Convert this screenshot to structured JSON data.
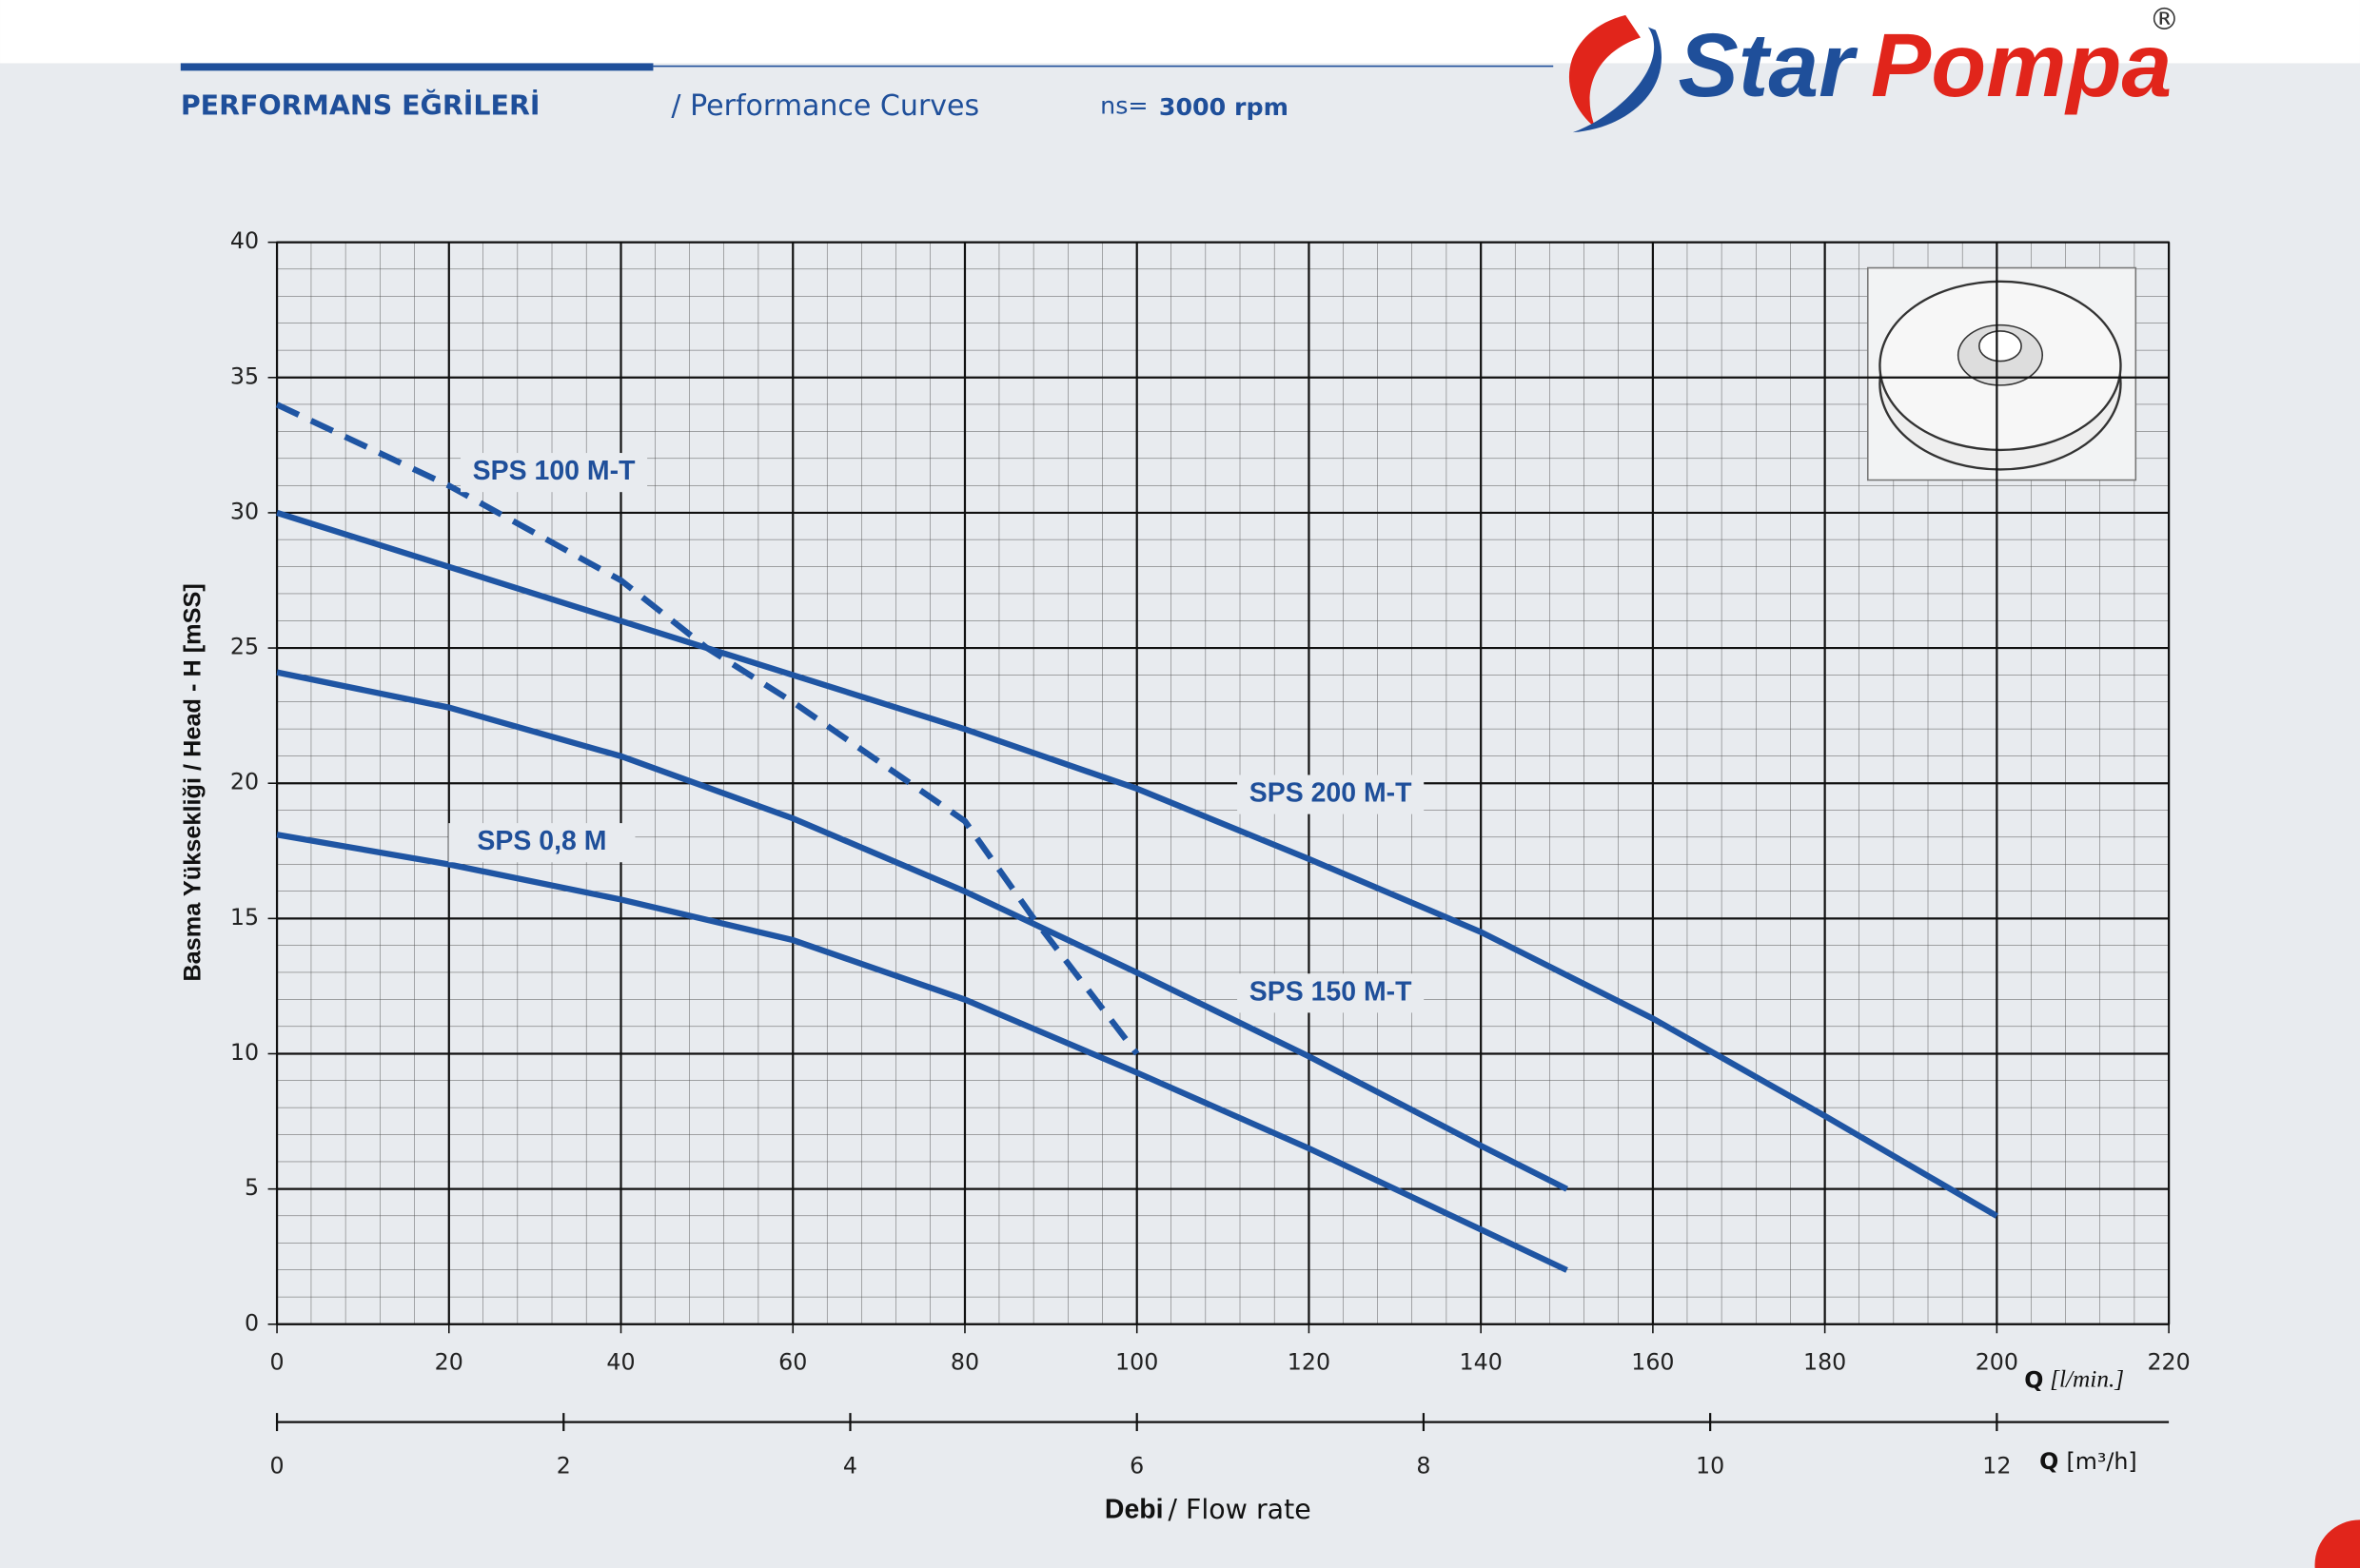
{
  "header": {
    "title": "PERFORMANS EĞRİLERİ",
    "subtitle": "/ Performance Curves",
    "speed_label": "ns=",
    "speed_value": "3000 rpm"
  },
  "logo": {
    "brand": "Star",
    "brand2": "Pompa",
    "reg": "®"
  },
  "chart_data": {
    "type": "line",
    "ylabel": "Basma Yüksekliği / Head - H [mSS]",
    "xlabel_bold": "Debi",
    "xlabel": "/ Flow rate",
    "xunit_bold": "Q",
    "xunit": "[l/min.]",
    "x2unit_bold": "Q",
    "x2unit": "[m³/h]",
    "xlim": [
      0,
      220
    ],
    "xticks": [
      0,
      20,
      40,
      60,
      80,
      100,
      120,
      140,
      160,
      180,
      200,
      220
    ],
    "ylim": [
      0,
      40
    ],
    "yticks": [
      0,
      5,
      10,
      15,
      20,
      25,
      30,
      35,
      40
    ],
    "x2lim": [
      0,
      13.2
    ],
    "x2ticks": [
      0,
      2,
      4,
      6,
      8,
      10,
      12
    ],
    "grid": true,
    "series": [
      {
        "name": "SPS 0,8 M",
        "color": "#1f55a3",
        "style": "solid",
        "x": [
          0,
          20,
          40,
          60,
          80,
          100,
          120,
          140,
          150
        ],
        "values": [
          18.1,
          17,
          15.7,
          14.2,
          12,
          9.3,
          6.5,
          3.5,
          2
        ]
      },
      {
        "name": "SPS 150 M-T",
        "color": "#1f55a3",
        "style": "solid",
        "x": [
          0,
          20,
          40,
          60,
          80,
          100,
          120,
          140,
          150
        ],
        "values": [
          24.1,
          22.8,
          21,
          18.7,
          16,
          13,
          9.9,
          6.6,
          5
        ]
      },
      {
        "name": "SPS 200 M-T",
        "color": "#1f55a3",
        "style": "solid",
        "x": [
          0,
          20,
          40,
          60,
          80,
          100,
          120,
          140,
          160,
          180,
          200
        ],
        "values": [
          30,
          28,
          26,
          24,
          22,
          19.8,
          17.2,
          14.5,
          11.3,
          7.7,
          4
        ]
      },
      {
        "name": "SPS 100 M-T",
        "color": "#1f55a3",
        "style": "dashed",
        "x": [
          0,
          20,
          40,
          50,
          60,
          80,
          88,
          100
        ],
        "values": [
          34,
          31,
          27.5,
          25,
          23,
          18.6,
          15,
          10
        ]
      }
    ]
  }
}
